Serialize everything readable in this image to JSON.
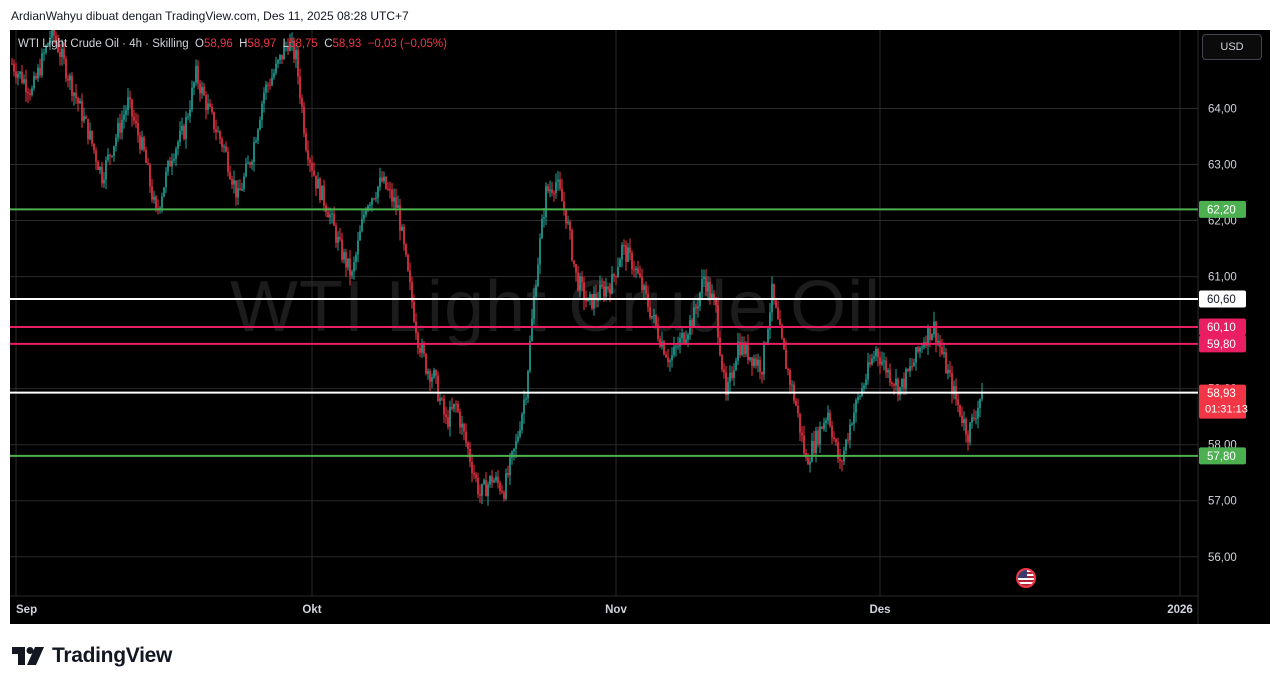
{
  "caption": "ArdianWahyu dibuat dengan TradingView.com, Des 11, 2025 08:28 UTC+7",
  "brand": {
    "name": "TradingView",
    "logo_icon": "tradingview-logo-icon"
  },
  "currency_button": "USD",
  "watermark": "WTI Light Crude Oil",
  "legend": {
    "symbol": "WTI Light Crude Oil · 4h · Skilling",
    "o_label": "O",
    "o_value": "58,96",
    "h_label": "H",
    "h_value": "58,97",
    "l_label": "L",
    "l_value": "58,75",
    "c_label": "C",
    "c_value": "58,93",
    "change": "−0,03 (−0,05%)"
  },
  "event_icon": "us-flag-icon",
  "colors": {
    "up": "#26a69a",
    "down": "#f23645",
    "green_level": "#4caf50",
    "pink_level": "#e91e63",
    "white_level": "#ffffff"
  },
  "chart_data": {
    "type": "candlestick",
    "interval": "4h",
    "ylim": [
      55.3,
      65.4
    ],
    "y_ticks": [
      {
        "value": 56,
        "label": "56,00"
      },
      {
        "value": 57,
        "label": "57,00"
      },
      {
        "value": 58,
        "label": "58,00"
      },
      {
        "value": 59,
        "label": "59,00"
      },
      {
        "value": 61,
        "label": "61,00"
      },
      {
        "value": 62,
        "label": "62,00"
      },
      {
        "value": 63,
        "label": "63,00"
      },
      {
        "value": 64,
        "label": "64,00"
      }
    ],
    "x_ticks": [
      {
        "label": "Sep",
        "bar": 2
      },
      {
        "label": "Okt",
        "bar": 150
      },
      {
        "label": "Nov",
        "bar": 302
      },
      {
        "label": "Des",
        "bar": 434
      },
      {
        "label": "2026",
        "bar": 584
      }
    ],
    "levels": [
      {
        "value": 62.2,
        "label": "62,20",
        "kind": "green"
      },
      {
        "value": 60.6,
        "label": "60,60",
        "kind": "white"
      },
      {
        "value": 60.1,
        "label": "60,10",
        "kind": "pink"
      },
      {
        "value": 59.8,
        "label": "59,80",
        "kind": "pink"
      },
      {
        "value": 58.93,
        "label": "58,93",
        "kind": "white",
        "countdown": "01:31:13"
      },
      {
        "value": 57.8,
        "label": "57,80",
        "kind": "green"
      }
    ],
    "last_price": {
      "value": 58.93,
      "label": "58,93",
      "countdown": "01:31:13"
    },
    "current_bar": 485,
    "path": [
      [
        0,
        64.8
      ],
      [
        10,
        64.3
      ],
      [
        20,
        65.4
      ],
      [
        30,
        64.4
      ],
      [
        38,
        63.6
      ],
      [
        45,
        62.8
      ],
      [
        52,
        63.5
      ],
      [
        58,
        64.1
      ],
      [
        66,
        63.2
      ],
      [
        72,
        62.1
      ],
      [
        80,
        63.2
      ],
      [
        86,
        63.6
      ],
      [
        92,
        64.6
      ],
      [
        100,
        63.8
      ],
      [
        106,
        63.3
      ],
      [
        113,
        62.4
      ],
      [
        120,
        63.2
      ],
      [
        126,
        64.3
      ],
      [
        132,
        64.7
      ],
      [
        138,
        65.2
      ],
      [
        142,
        64.9
      ],
      [
        147,
        63.4
      ],
      [
        152,
        62.7
      ],
      [
        158,
        62.2
      ],
      [
        164,
        61.5
      ],
      [
        170,
        61.0
      ],
      [
        177,
        62.3
      ],
      [
        185,
        62.7
      ],
      [
        193,
        62.2
      ],
      [
        198,
        61.0
      ],
      [
        203,
        59.9
      ],
      [
        207,
        59.4
      ],
      [
        211,
        59.2
      ],
      [
        217,
        58.4
      ],
      [
        222,
        58.7
      ],
      [
        228,
        57.9
      ],
      [
        234,
        57.1
      ],
      [
        240,
        57.4
      ],
      [
        246,
        57.2
      ],
      [
        252,
        58.0
      ],
      [
        257,
        59.0
      ],
      [
        262,
        61.0
      ],
      [
        267,
        62.5
      ],
      [
        272,
        62.7
      ],
      [
        277,
        62.1
      ],
      [
        282,
        61.0
      ],
      [
        288,
        60.5
      ],
      [
        294,
        60.7
      ],
      [
        300,
        60.9
      ],
      [
        305,
        61.5
      ],
      [
        311,
        61.2
      ],
      [
        317,
        60.6
      ],
      [
        323,
        60.0
      ],
      [
        329,
        59.5
      ],
      [
        335,
        59.9
      ],
      [
        341,
        60.3
      ],
      [
        346,
        61.0
      ],
      [
        352,
        60.4
      ],
      [
        357,
        58.8
      ],
      [
        363,
        59.8
      ],
      [
        369,
        59.6
      ],
      [
        375,
        59.4
      ],
      [
        380,
        60.7
      ],
      [
        386,
        59.6
      ],
      [
        392,
        58.7
      ],
      [
        397,
        57.7
      ],
      [
        402,
        58.1
      ],
      [
        408,
        58.6
      ],
      [
        414,
        57.6
      ],
      [
        420,
        58.5
      ],
      [
        426,
        59.1
      ],
      [
        432,
        59.7
      ],
      [
        438,
        59.3
      ],
      [
        444,
        59.0
      ],
      [
        450,
        59.4
      ],
      [
        456,
        59.9
      ],
      [
        461,
        60.1
      ],
      [
        466,
        59.5
      ],
      [
        472,
        58.8
      ],
      [
        478,
        58.2
      ],
      [
        482,
        58.6
      ],
      [
        485,
        58.93
      ]
    ]
  }
}
